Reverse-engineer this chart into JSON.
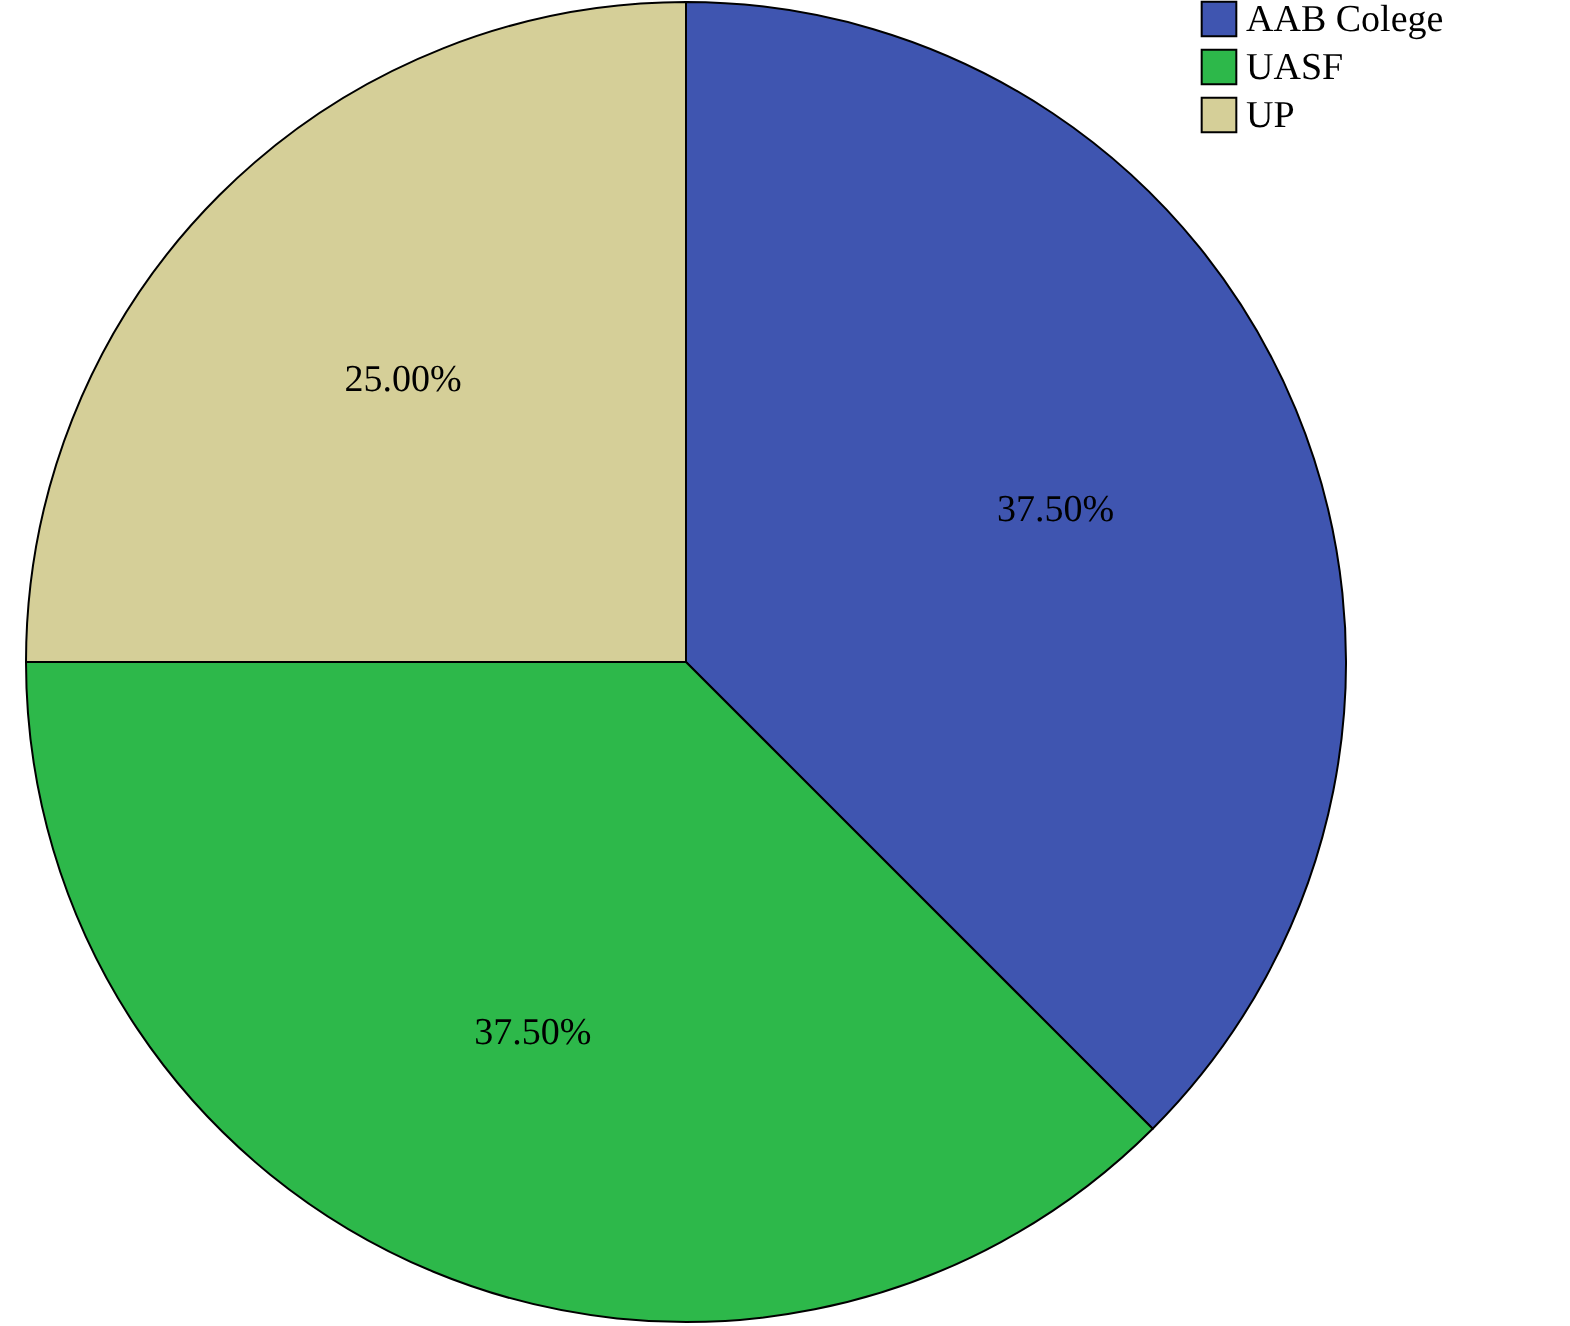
{
  "chart_data": {
    "type": "pie",
    "categories": [
      "AAB Colege",
      "UASF",
      "UP"
    ],
    "values": [
      37.5,
      37.5,
      25
    ],
    "value_labels": [
      "37.50%",
      "37.50%",
      "25.00%"
    ],
    "colors": [
      "#3f55b0",
      "#2db84a",
      "#d5cf98"
    ],
    "legend": "top right"
  }
}
